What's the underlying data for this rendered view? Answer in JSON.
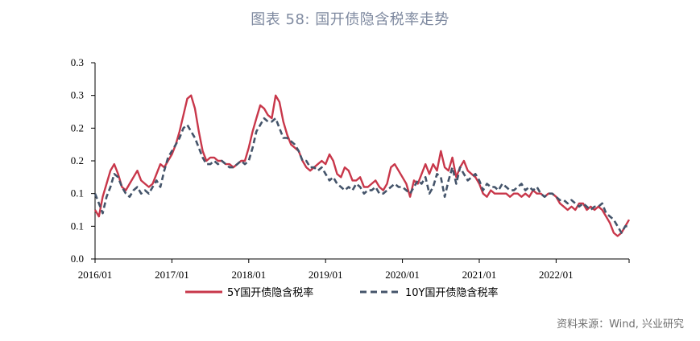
{
  "title": "图表 58: 国开债隐含税率走势",
  "source": "资料来源：Wind, 兴业研究",
  "chart_data": {
    "type": "line",
    "title": "图表 58: 国开债隐含税率走势",
    "xlabel": "",
    "ylabel": "",
    "y_tick_labels": [
      "0.0",
      "0.1",
      "0.1",
      "0.2",
      "0.2",
      "0.3",
      "0.3"
    ],
    "y_tick_values": [
      0.0,
      0.05,
      0.1,
      0.15,
      0.2,
      0.25,
      0.3
    ],
    "ylim": [
      0.0,
      0.3
    ],
    "x_tick_labels": [
      "2016/01",
      "2017/01",
      "2018/01",
      "2019/01",
      "2020/01",
      "2021/01",
      "2022/01"
    ],
    "x_tick_values": [
      2016.0,
      2017.0,
      2018.0,
      2019.0,
      2020.0,
      2021.0,
      2022.0
    ],
    "xlim": [
      2016.0,
      2022.95
    ],
    "legend_position": "bottom",
    "grid": false,
    "series": [
      {
        "name": "5Y国开债隐含税率",
        "color": "#c8374a",
        "style": "solid",
        "x": [
          2016.0,
          2016.05,
          2016.1,
          2016.15,
          2016.2,
          2016.25,
          2016.3,
          2016.35,
          2016.4,
          2016.45,
          2016.5,
          2016.55,
          2016.6,
          2016.65,
          2016.7,
          2016.75,
          2016.8,
          2016.85,
          2016.9,
          2016.95,
          2017.0,
          2017.05,
          2017.1,
          2017.15,
          2017.2,
          2017.25,
          2017.3,
          2017.35,
          2017.4,
          2017.45,
          2017.5,
          2017.55,
          2017.6,
          2017.65,
          2017.7,
          2017.75,
          2017.8,
          2017.85,
          2017.9,
          2017.95,
          2018.0,
          2018.05,
          2018.1,
          2018.15,
          2018.2,
          2018.25,
          2018.3,
          2018.35,
          2018.4,
          2018.45,
          2018.5,
          2018.55,
          2018.6,
          2018.65,
          2018.7,
          2018.75,
          2018.8,
          2018.85,
          2018.9,
          2018.95,
          2019.0,
          2019.05,
          2019.1,
          2019.15,
          2019.2,
          2019.25,
          2019.3,
          2019.35,
          2019.4,
          2019.45,
          2019.5,
          2019.55,
          2019.6,
          2019.65,
          2019.7,
          2019.75,
          2019.8,
          2019.85,
          2019.9,
          2019.95,
          2020.0,
          2020.05,
          2020.1,
          2020.15,
          2020.2,
          2020.25,
          2020.3,
          2020.35,
          2020.4,
          2020.45,
          2020.5,
          2020.55,
          2020.6,
          2020.65,
          2020.7,
          2020.75,
          2020.8,
          2020.85,
          2020.9,
          2020.95,
          2021.0,
          2021.05,
          2021.1,
          2021.15,
          2021.2,
          2021.25,
          2021.3,
          2021.35,
          2021.4,
          2021.45,
          2021.5,
          2021.55,
          2021.6,
          2021.65,
          2021.7,
          2021.75,
          2021.8,
          2021.85,
          2021.9,
          2021.95,
          2022.0,
          2022.05,
          2022.1,
          2022.15,
          2022.2,
          2022.25,
          2022.3,
          2022.35,
          2022.4,
          2022.45,
          2022.5,
          2022.55,
          2022.6,
          2022.65,
          2022.7,
          2022.75,
          2022.8,
          2022.85,
          2022.9,
          2022.95
        ],
        "y": [
          0.075,
          0.065,
          0.095,
          0.115,
          0.135,
          0.145,
          0.13,
          0.11,
          0.105,
          0.115,
          0.125,
          0.135,
          0.12,
          0.115,
          0.11,
          0.115,
          0.13,
          0.145,
          0.14,
          0.15,
          0.16,
          0.175,
          0.195,
          0.22,
          0.245,
          0.25,
          0.23,
          0.195,
          0.165,
          0.15,
          0.155,
          0.155,
          0.15,
          0.15,
          0.145,
          0.145,
          0.14,
          0.145,
          0.15,
          0.15,
          0.17,
          0.195,
          0.215,
          0.235,
          0.23,
          0.22,
          0.215,
          0.25,
          0.24,
          0.21,
          0.19,
          0.175,
          0.17,
          0.165,
          0.15,
          0.14,
          0.135,
          0.14,
          0.145,
          0.15,
          0.145,
          0.16,
          0.15,
          0.13,
          0.125,
          0.14,
          0.135,
          0.12,
          0.12,
          0.125,
          0.11,
          0.11,
          0.115,
          0.12,
          0.11,
          0.105,
          0.115,
          0.14,
          0.145,
          0.135,
          0.125,
          0.115,
          0.095,
          0.12,
          0.115,
          0.13,
          0.145,
          0.13,
          0.145,
          0.135,
          0.165,
          0.14,
          0.135,
          0.155,
          0.125,
          0.14,
          0.15,
          0.135,
          0.13,
          0.125,
          0.115,
          0.1,
          0.095,
          0.105,
          0.1,
          0.1,
          0.1,
          0.1,
          0.095,
          0.1,
          0.1,
          0.095,
          0.1,
          0.095,
          0.105,
          0.1,
          0.1,
          0.095,
          0.1,
          0.1,
          0.095,
          0.085,
          0.08,
          0.075,
          0.08,
          0.075,
          0.085,
          0.085,
          0.075,
          0.08,
          0.075,
          0.08,
          0.075,
          0.065,
          0.055,
          0.04,
          0.035,
          0.04,
          0.05,
          0.06
        ],
        "end_x": 2022.95
      },
      {
        "name": "10Y国开债隐含税率",
        "color": "#44546a",
        "style": "dashed",
        "x": [
          2016.0,
          2016.05,
          2016.1,
          2016.15,
          2016.2,
          2016.25,
          2016.3,
          2016.35,
          2016.4,
          2016.45,
          2016.5,
          2016.55,
          2016.6,
          2016.65,
          2016.7,
          2016.75,
          2016.8,
          2016.85,
          2016.9,
          2016.95,
          2017.0,
          2017.05,
          2017.1,
          2017.15,
          2017.2,
          2017.25,
          2017.3,
          2017.35,
          2017.4,
          2017.45,
          2017.5,
          2017.55,
          2017.6,
          2017.65,
          2017.7,
          2017.75,
          2017.8,
          2017.85,
          2017.9,
          2017.95,
          2018.0,
          2018.05,
          2018.1,
          2018.15,
          2018.2,
          2018.25,
          2018.3,
          2018.35,
          2018.4,
          2018.45,
          2018.5,
          2018.55,
          2018.6,
          2018.65,
          2018.7,
          2018.75,
          2018.8,
          2018.85,
          2018.9,
          2018.95,
          2019.0,
          2019.05,
          2019.1,
          2019.15,
          2019.2,
          2019.25,
          2019.3,
          2019.35,
          2019.4,
          2019.45,
          2019.5,
          2019.55,
          2019.6,
          2019.65,
          2019.7,
          2019.75,
          2019.8,
          2019.85,
          2019.9,
          2019.95,
          2020.0,
          2020.05,
          2020.1,
          2020.15,
          2020.2,
          2020.25,
          2020.3,
          2020.35,
          2020.4,
          2020.45,
          2020.5,
          2020.55,
          2020.6,
          2020.65,
          2020.7,
          2020.75,
          2020.8,
          2020.85,
          2020.9,
          2020.95,
          2021.0,
          2021.05,
          2021.1,
          2021.15,
          2021.2,
          2021.25,
          2021.3,
          2021.35,
          2021.4,
          2021.45,
          2021.5,
          2021.55,
          2021.6,
          2021.65,
          2021.7,
          2021.75,
          2021.8,
          2021.85,
          2021.9,
          2021.95,
          2022.0,
          2022.05,
          2022.1,
          2022.15,
          2022.2,
          2022.25,
          2022.3,
          2022.35,
          2022.4,
          2022.45,
          2022.5,
          2022.55,
          2022.6,
          2022.65,
          2022.7,
          2022.75,
          2022.8,
          2022.85,
          2022.9,
          2022.95
        ],
        "y": [
          0.1,
          0.085,
          0.07,
          0.095,
          0.11,
          0.13,
          0.125,
          0.11,
          0.1,
          0.095,
          0.105,
          0.11,
          0.1,
          0.105,
          0.1,
          0.11,
          0.12,
          0.11,
          0.135,
          0.155,
          0.165,
          0.175,
          0.185,
          0.2,
          0.205,
          0.195,
          0.185,
          0.17,
          0.155,
          0.145,
          0.145,
          0.15,
          0.145,
          0.15,
          0.145,
          0.14,
          0.14,
          0.145,
          0.15,
          0.145,
          0.15,
          0.17,
          0.195,
          0.205,
          0.215,
          0.21,
          0.21,
          0.215,
          0.2,
          0.185,
          0.185,
          0.18,
          0.175,
          0.165,
          0.15,
          0.15,
          0.14,
          0.14,
          0.135,
          0.14,
          0.13,
          0.12,
          0.125,
          0.115,
          0.11,
          0.105,
          0.11,
          0.105,
          0.115,
          0.11,
          0.1,
          0.105,
          0.105,
          0.11,
          0.1,
          0.1,
          0.105,
          0.11,
          0.115,
          0.11,
          0.11,
          0.105,
          0.1,
          0.11,
          0.12,
          0.115,
          0.125,
          0.1,
          0.11,
          0.13,
          0.125,
          0.095,
          0.12,
          0.14,
          0.115,
          0.14,
          0.13,
          0.12,
          0.125,
          0.13,
          0.12,
          0.105,
          0.115,
          0.11,
          0.11,
          0.105,
          0.115,
          0.11,
          0.105,
          0.105,
          0.11,
          0.115,
          0.105,
          0.11,
          0.105,
          0.11,
          0.1,
          0.095,
          0.1,
          0.1,
          0.095,
          0.09,
          0.09,
          0.085,
          0.09,
          0.085,
          0.08,
          0.085,
          0.08,
          0.075,
          0.08,
          0.08,
          0.085,
          0.07,
          0.065,
          0.06,
          0.05,
          0.04,
          0.05,
          0.05
        ],
        "end_x": 2022.95
      }
    ]
  }
}
